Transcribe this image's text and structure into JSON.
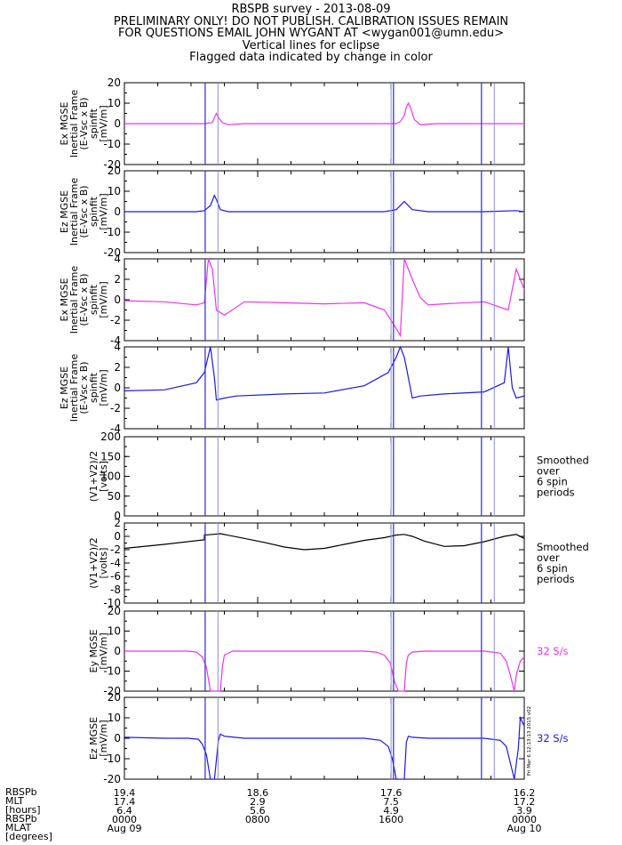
{
  "header": {
    "lines": [
      "RBSPB survey - 2013-08-09",
      "PRELIMINARY ONLY! DO NOT PUBLISH. CALIBRATION ISSUES REMAIN",
      "FOR QUESTIONS EMAIL JOHN WYGANT AT <wygan001@umn.edu>",
      "Vertical lines for eclipse",
      "Flagged data indicated by change in color"
    ]
  },
  "colors": {
    "magenta": "#ee33ee",
    "blue": "#1a1ae6",
    "black": "#000000",
    "eclipse_dark": "#3a3ad0",
    "eclipse_light": "#8a8ae8"
  },
  "chart_data": [
    {
      "type": "line",
      "id": "ex-inertial-1",
      "ylim": [
        -20,
        20
      ],
      "yticks": [
        -20,
        -10,
        0,
        10,
        20
      ],
      "ylabel": [
        "Ex MGSE",
        "Inertial Frame",
        "(E-Vsc x B)",
        "spinfit",
        "[mV/m]"
      ],
      "color": "magenta",
      "x": [
        0,
        0.2,
        0.22,
        0.225,
        0.23,
        0.235,
        0.245,
        0.26,
        0.3,
        0.5,
        0.68,
        0.69,
        0.7,
        0.705,
        0.71,
        0.715,
        0.725,
        0.74,
        0.78,
        0.9,
        1.0
      ],
      "y": [
        0,
        0,
        0.5,
        3,
        5,
        3,
        0.5,
        -0.5,
        0,
        0,
        0,
        1,
        4,
        8,
        10,
        8,
        2,
        -0.5,
        0,
        0,
        0
      ]
    },
    {
      "type": "line",
      "id": "ez-inertial-1",
      "ylim": [
        -20,
        20
      ],
      "yticks": [
        -20,
        -10,
        0,
        10,
        20
      ],
      "ylabel": [
        "Ez MGSE",
        "Inertial Frame",
        "(E-Vsc x B)",
        "spinfit",
        "[mV/m]"
      ],
      "color": "blue",
      "x": [
        0,
        0.18,
        0.2,
        0.215,
        0.225,
        0.23,
        0.24,
        0.26,
        0.3,
        0.5,
        0.65,
        0.68,
        0.69,
        0.7,
        0.72,
        0.76,
        0.9,
        0.98,
        1.0
      ],
      "y": [
        0,
        0,
        0.5,
        3,
        8,
        6,
        1,
        0,
        0,
        0,
        0,
        1,
        3,
        5,
        1,
        0,
        0,
        0.5,
        0
      ]
    },
    {
      "type": "line",
      "id": "ex-inertial-2",
      "ylim": [
        -4,
        4
      ],
      "yticks": [
        -4,
        -2,
        0,
        2,
        4
      ],
      "ylabel": [
        "Ex MGSE",
        "Inertial Frame",
        "(E-Vsc x B)",
        "spinfit",
        "[mV/m]"
      ],
      "color": "magenta",
      "x": [
        0,
        0.1,
        0.18,
        0.2,
        0.21,
        0.22,
        0.23,
        0.25,
        0.3,
        0.4,
        0.5,
        0.6,
        0.65,
        0.675,
        0.69,
        0.7,
        0.72,
        0.74,
        0.76,
        0.8,
        0.9,
        0.96,
        0.98,
        1.0
      ],
      "y": [
        -0.1,
        -0.2,
        -0.5,
        -0.3,
        4,
        3,
        -1,
        -1.5,
        -0.2,
        -0.3,
        -0.4,
        -0.3,
        -1.0,
        -2.5,
        -3.5,
        4,
        2,
        0.2,
        -0.5,
        -0.4,
        -0.2,
        -1,
        3,
        1
      ]
    },
    {
      "type": "line",
      "id": "ez-inertial-2",
      "ylim": [
        -4,
        4
      ],
      "yticks": [
        -4,
        -2,
        0,
        2,
        4
      ],
      "ylabel": [
        "Ez MGSE",
        "Inertial Frame",
        "(E-Vsc x B)",
        "spinfit",
        "[mV/m]"
      ],
      "color": "blue",
      "x": [
        0,
        0.1,
        0.18,
        0.2,
        0.215,
        0.225,
        0.23,
        0.25,
        0.28,
        0.4,
        0.5,
        0.6,
        0.66,
        0.68,
        0.69,
        0.7,
        0.705,
        0.72,
        0.74,
        0.8,
        0.9,
        0.95,
        0.96,
        0.97,
        0.98,
        1.0
      ],
      "y": [
        -0.3,
        -0.2,
        0.5,
        1.5,
        4,
        1,
        -1.2,
        -1.0,
        -0.8,
        -0.6,
        -0.5,
        0.2,
        1.5,
        3,
        4,
        3,
        2,
        -1,
        -0.8,
        -0.6,
        -0.4,
        0.5,
        4,
        0,
        -1,
        -0.8
      ]
    },
    {
      "type": "line",
      "id": "v1v2-a",
      "ylim": [
        0,
        200
      ],
      "yticks": [
        0,
        50,
        100,
        150,
        200
      ],
      "ylabel": [
        "(V1+V2)/2",
        "[volts]"
      ],
      "side_note": [
        "Smoothed",
        "over",
        "6 spin",
        "periods"
      ],
      "color": "black",
      "x": [],
      "y": []
    },
    {
      "type": "line",
      "id": "v1v2-b",
      "ylim": [
        -10,
        2
      ],
      "yticks": [
        -10,
        -8,
        -6,
        -4,
        -2,
        0,
        2
      ],
      "ylabel": [
        "(V1+V2)/2",
        "[volts]"
      ],
      "side_note": [
        "Smoothed",
        "over",
        "6 spin",
        "periods"
      ],
      "color": "black",
      "x": [
        0,
        0.1,
        0.2,
        0.2,
        0.22,
        0.24,
        0.3,
        0.35,
        0.4,
        0.45,
        0.5,
        0.55,
        0.6,
        0.65,
        0.68,
        0.7,
        0.72,
        0.75,
        0.8,
        0.85,
        0.9,
        0.95,
        0.98,
        1.0
      ],
      "y": [
        -1.8,
        -1.2,
        -0.5,
        0.2,
        0.3,
        0.4,
        -0.3,
        -0.9,
        -1.6,
        -2.0,
        -1.8,
        -1.2,
        -0.6,
        -0.2,
        0.2,
        0.3,
        0.0,
        -0.7,
        -1.5,
        -1.4,
        -0.8,
        0,
        0.3,
        -0.3
      ]
    },
    {
      "type": "line",
      "id": "ey-32",
      "ylim": [
        -20,
        20
      ],
      "yticks": [
        -20,
        -10,
        0,
        10,
        20
      ],
      "ylabel": [
        "Ey MGSE",
        "[mV/m]"
      ],
      "side_note": [
        "32 S/s"
      ],
      "side_color": "magenta",
      "color": "magenta",
      "x": [
        0,
        0.1,
        0.16,
        0.18,
        0.195,
        0.205,
        0.215,
        0.22,
        0.24,
        0.245,
        0.25,
        0.27,
        0.3,
        0.5,
        0.6,
        0.63,
        0.65,
        0.665,
        0.675,
        0.685,
        0.69,
        0.7,
        0.705,
        0.71,
        0.72,
        0.75,
        0.9,
        0.94,
        0.955,
        0.965,
        0.975,
        0.98,
        0.99,
        1.0
      ],
      "y": [
        0,
        0,
        0,
        -0.5,
        -3,
        -8,
        -20,
        -20,
        -20,
        -8,
        -2,
        0,
        0,
        0,
        0,
        -0.5,
        -2,
        -6,
        -15,
        -20,
        -20,
        -20,
        -6,
        -2,
        -0.5,
        0,
        0,
        -1,
        -5,
        -12,
        -20,
        -12,
        -5,
        -3
      ]
    },
    {
      "type": "line",
      "id": "ez-32",
      "ylim": [
        -20,
        20
      ],
      "yticks": [
        -20,
        -10,
        0,
        10,
        20
      ],
      "ylabel": [
        "Ez MGSE",
        "[mV/m]"
      ],
      "side_note": [
        "32 S/s"
      ],
      "side_color": "blue",
      "color": "blue",
      "x": [
        0,
        0.1,
        0.16,
        0.185,
        0.195,
        0.205,
        0.215,
        0.225,
        0.235,
        0.24,
        0.25,
        0.3,
        0.5,
        0.6,
        0.64,
        0.66,
        0.67,
        0.68,
        0.69,
        0.7,
        0.705,
        0.71,
        0.72,
        0.76,
        0.9,
        0.94,
        0.955,
        0.965,
        0.975,
        0.985,
        0.99,
        1.0
      ],
      "y": [
        0.5,
        0,
        0,
        -0.5,
        -3,
        -8,
        -20,
        -20,
        -1,
        2,
        1,
        0,
        0,
        0,
        -1,
        -4,
        -10,
        -20,
        -20,
        -20,
        -2,
        1,
        0.5,
        0,
        0,
        -1,
        -4,
        -12,
        -20,
        -5,
        10,
        6
      ]
    }
  ],
  "eclipse_x": {
    "dark": [
      0.202,
      0.673,
      0.893
    ],
    "light": [
      0.234,
      0.667,
      0.925
    ]
  },
  "footer": {
    "row_labels": [
      "RBSPb",
      "MLT",
      "[hours]",
      "RBSPb",
      "MLAT",
      "[degrees]"
    ],
    "columns": [
      {
        "x": 0.0,
        "values": [
          "19.4",
          "17.4",
          "6.4",
          "0000",
          "Aug 09"
        ]
      },
      {
        "x": 0.333,
        "values": [
          "18.6",
          "2.9",
          "5.6",
          "0800",
          ""
        ]
      },
      {
        "x": 0.667,
        "values": [
          "17.6",
          "7.5",
          "4.9",
          "1600",
          ""
        ]
      },
      {
        "x": 1.0,
        "values": [
          "16.2",
          "17.2",
          "3.9",
          "0000",
          "Aug 10"
        ]
      }
    ],
    "stamp": "Fri Mar 6 12:13:13 2015 v02"
  }
}
